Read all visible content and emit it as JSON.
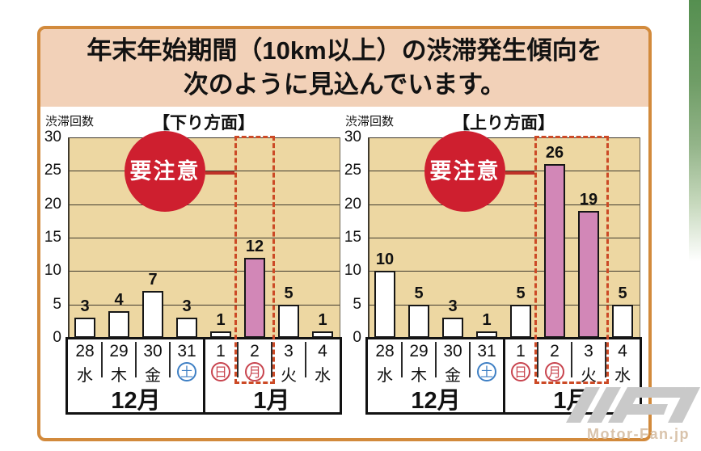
{
  "header": {
    "title_line1": "年末年始期間（10km以上）の渋滞発生傾向を",
    "title_line2": "次のように見込んでいます。"
  },
  "watermark": {
    "logo": "MF-logo",
    "text": "Motor-Fan.jp"
  },
  "colors": {
    "frame_border": "#d28a3c",
    "title_bg": "#f2d1b8",
    "plot_bg": "#edd7a2",
    "bar_default": "#ffffff",
    "bar_highlight": "#d287b7",
    "bar_border": "#161616",
    "gridline": "#3f3a2e",
    "dashed_box": "#cc4a26",
    "badge_red": "#ce1f2f",
    "connector_red": "#bf3228",
    "saturday_blue": "#3e7fc4",
    "sunday_red": "#c8444e",
    "green_strip": "#558f50",
    "watermark_gray": "#c9c9c9"
  },
  "chart_data": [
    {
      "type": "bar",
      "title": "【下り方面】",
      "ylabel": "渋滞回数",
      "ylim": [
        0,
        30
      ],
      "yticks": [
        0,
        5,
        10,
        15,
        20,
        25,
        30
      ],
      "grid": true,
      "legend": "none",
      "annotation": "要注意",
      "days": [
        "28",
        "29",
        "30",
        "31",
        "1",
        "2",
        "3",
        "4"
      ],
      "weekdays": [
        {
          "label": "水",
          "style": "plain"
        },
        {
          "label": "木",
          "style": "plain"
        },
        {
          "label": "金",
          "style": "plain"
        },
        {
          "label": "土",
          "style": "blue-circle"
        },
        {
          "label": "日",
          "style": "red-circle"
        },
        {
          "label": "月",
          "style": "red-circle"
        },
        {
          "label": "火",
          "style": "plain"
        },
        {
          "label": "水",
          "style": "plain"
        }
      ],
      "months": [
        {
          "label": "12月",
          "span": 4
        },
        {
          "label": "1月",
          "span": 4
        }
      ],
      "values": [
        3,
        4,
        7,
        3,
        1,
        12,
        5,
        1
      ],
      "highlight_indices": [
        5
      ],
      "highlight_box_columns": [
        5,
        5
      ]
    },
    {
      "type": "bar",
      "title": "【上り方面】",
      "ylabel": "渋滞回数",
      "ylim": [
        0,
        30
      ],
      "yticks": [
        0,
        5,
        10,
        15,
        20,
        25,
        30
      ],
      "grid": true,
      "legend": "none",
      "annotation": "要注意",
      "days": [
        "28",
        "29",
        "30",
        "31",
        "1",
        "2",
        "3",
        "4"
      ],
      "weekdays": [
        {
          "label": "水",
          "style": "plain"
        },
        {
          "label": "木",
          "style": "plain"
        },
        {
          "label": "金",
          "style": "plain"
        },
        {
          "label": "土",
          "style": "blue-circle"
        },
        {
          "label": "日",
          "style": "red-circle"
        },
        {
          "label": "月",
          "style": "red-circle"
        },
        {
          "label": "火",
          "style": "plain"
        },
        {
          "label": "水",
          "style": "plain"
        }
      ],
      "months": [
        {
          "label": "12月",
          "span": 4
        },
        {
          "label": "1月",
          "span": 4
        }
      ],
      "values": [
        10,
        5,
        3,
        1,
        5,
        26,
        19,
        5
      ],
      "highlight_indices": [
        5,
        6
      ],
      "highlight_box_columns": [
        5,
        6
      ]
    }
  ]
}
